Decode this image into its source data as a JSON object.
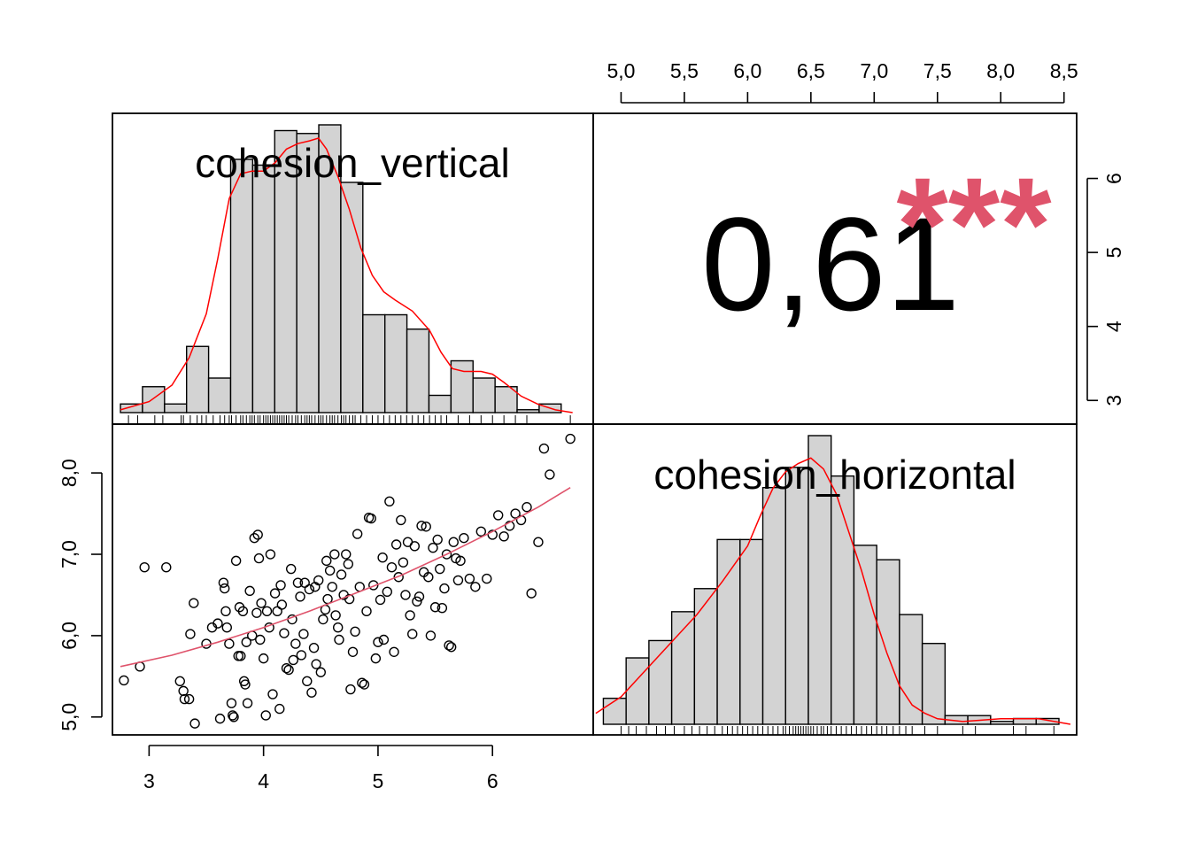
{
  "chart_data": {
    "type": "scatter-matrix",
    "variables": [
      "cohesion_vertical",
      "cohesion_horizontal"
    ],
    "colors": {
      "density": "#ff0000",
      "smooth": "#df536b",
      "stars": "#df536b",
      "bar_fill": "#d3d3d3"
    },
    "x_axis_v": {
      "ticks": [
        3,
        4,
        5,
        6
      ],
      "labels": [
        "3",
        "4",
        "5",
        "6"
      ],
      "range": [
        2.68,
        6.88
      ]
    },
    "y_axis_h": {
      "ticks": [
        5.0,
        6.0,
        7.0,
        8.0
      ],
      "labels": [
        "5,0",
        "6,0",
        "7,0",
        "8,0"
      ],
      "range": [
        4.78,
        8.6
      ]
    },
    "top_axis_h": {
      "ticks": [
        5.0,
        5.5,
        6.0,
        6.5,
        7.0,
        7.5,
        8.0,
        8.5
      ],
      "labels": [
        "5,0",
        "5,5",
        "6,0",
        "6,5",
        "7,0",
        "7,5",
        "8,0",
        "8,5"
      ],
      "range": [
        4.78,
        8.6
      ]
    },
    "right_axis_v": {
      "ticks": [
        3,
        4,
        5,
        6
      ],
      "labels": [
        "3",
        "4",
        "5",
        "6"
      ],
      "range": [
        2.68,
        6.88
      ]
    },
    "correlation": {
      "text": "0,61",
      "stars": "***"
    },
    "hist_vertical": {
      "start": 2.75,
      "width": 0.1925,
      "rel_heights": [
        0.03,
        0.09,
        0.03,
        0.23,
        0.12,
        0.88,
        0.86,
        0.98,
        0.97,
        1.0,
        0.8,
        0.34,
        0.34,
        0.29,
        0.06,
        0.18,
        0.12,
        0.09,
        0.01,
        0.03
      ],
      "density": [
        [
          2.75,
          0.01
        ],
        [
          3.0,
          0.04
        ],
        [
          3.2,
          0.1
        ],
        [
          3.35,
          0.2
        ],
        [
          3.5,
          0.36
        ],
        [
          3.6,
          0.56
        ],
        [
          3.7,
          0.78
        ],
        [
          3.8,
          0.87
        ],
        [
          3.9,
          0.88
        ],
        [
          4.0,
          0.88
        ],
        [
          4.1,
          0.91
        ],
        [
          4.2,
          0.96
        ],
        [
          4.3,
          0.98
        ],
        [
          4.4,
          0.99
        ],
        [
          4.48,
          1.0
        ],
        [
          4.55,
          0.96
        ],
        [
          4.65,
          0.86
        ],
        [
          4.75,
          0.74
        ],
        [
          4.85,
          0.6
        ],
        [
          4.95,
          0.5
        ],
        [
          5.05,
          0.44
        ],
        [
          5.15,
          0.41
        ],
        [
          5.3,
          0.37
        ],
        [
          5.45,
          0.3
        ],
        [
          5.55,
          0.22
        ],
        [
          5.65,
          0.16
        ],
        [
          5.75,
          0.15
        ],
        [
          5.9,
          0.15
        ],
        [
          6.0,
          0.14
        ],
        [
          6.1,
          0.11
        ],
        [
          6.25,
          0.06
        ],
        [
          6.4,
          0.03
        ],
        [
          6.55,
          0.01
        ],
        [
          6.7,
          0.0
        ]
      ]
    },
    "hist_horizontal": {
      "start": 4.86,
      "width": 0.18,
      "rel_heights": [
        0.09,
        0.23,
        0.29,
        0.39,
        0.47,
        0.64,
        0.64,
        0.82,
        0.89,
        1.0,
        0.86,
        0.62,
        0.57,
        0.38,
        0.28,
        0.03,
        0.03,
        0.01,
        0.02,
        0.02
      ],
      "density": [
        [
          4.8,
          0.04
        ],
        [
          5.0,
          0.1
        ],
        [
          5.2,
          0.2
        ],
        [
          5.4,
          0.3
        ],
        [
          5.6,
          0.4
        ],
        [
          5.8,
          0.52
        ],
        [
          6.0,
          0.65
        ],
        [
          6.1,
          0.76
        ],
        [
          6.2,
          0.86
        ],
        [
          6.3,
          0.92
        ],
        [
          6.4,
          0.95
        ],
        [
          6.5,
          0.97
        ],
        [
          6.6,
          0.93
        ],
        [
          6.7,
          0.84
        ],
        [
          6.8,
          0.7
        ],
        [
          6.9,
          0.56
        ],
        [
          7.0,
          0.4
        ],
        [
          7.1,
          0.26
        ],
        [
          7.2,
          0.14
        ],
        [
          7.3,
          0.07
        ],
        [
          7.4,
          0.04
        ],
        [
          7.5,
          0.02
        ],
        [
          7.7,
          0.01
        ],
        [
          8.0,
          0.02
        ],
        [
          8.3,
          0.02
        ],
        [
          8.55,
          0.0
        ]
      ]
    },
    "smooth_line": [
      [
        2.75,
        5.62
      ],
      [
        3.2,
        5.76
      ],
      [
        3.6,
        5.92
      ],
      [
        4.0,
        6.1
      ],
      [
        4.4,
        6.3
      ],
      [
        4.8,
        6.52
      ],
      [
        5.2,
        6.74
      ],
      [
        5.6,
        7.0
      ],
      [
        6.0,
        7.28
      ],
      [
        6.4,
        7.58
      ],
      [
        6.68,
        7.82
      ]
    ],
    "points": [
      [
        2.78,
        5.45
      ],
      [
        2.92,
        5.62
      ],
      [
        2.96,
        6.84
      ],
      [
        3.15,
        6.84
      ],
      [
        3.27,
        5.44
      ],
      [
        3.3,
        5.32
      ],
      [
        3.31,
        5.22
      ],
      [
        3.35,
        5.22
      ],
      [
        3.36,
        6.02
      ],
      [
        3.39,
        6.4
      ],
      [
        3.4,
        4.92
      ],
      [
        3.5,
        5.9
      ],
      [
        3.55,
        6.1
      ],
      [
        3.6,
        6.15
      ],
      [
        3.62,
        4.98
      ],
      [
        3.65,
        6.65
      ],
      [
        3.66,
        6.58
      ],
      [
        3.67,
        6.3
      ],
      [
        3.68,
        6.1
      ],
      [
        3.7,
        5.9
      ],
      [
        3.72,
        5.17
      ],
      [
        3.73,
        5.02
      ],
      [
        3.74,
        5.0
      ],
      [
        3.76,
        6.92
      ],
      [
        3.78,
        5.75
      ],
      [
        3.79,
        6.35
      ],
      [
        3.8,
        5.75
      ],
      [
        3.82,
        6.3
      ],
      [
        3.83,
        5.44
      ],
      [
        3.84,
        5.4
      ],
      [
        3.85,
        5.92
      ],
      [
        3.86,
        5.17
      ],
      [
        3.88,
        6.55
      ],
      [
        3.9,
        6.0
      ],
      [
        3.92,
        7.2
      ],
      [
        3.94,
        6.28
      ],
      [
        3.95,
        7.24
      ],
      [
        3.96,
        6.95
      ],
      [
        3.97,
        5.95
      ],
      [
        3.98,
        6.4
      ],
      [
        4.0,
        5.72
      ],
      [
        4.02,
        5.02
      ],
      [
        4.03,
        6.3
      ],
      [
        4.05,
        6.1
      ],
      [
        4.06,
        7.0
      ],
      [
        4.08,
        5.28
      ],
      [
        4.1,
        6.52
      ],
      [
        4.12,
        6.3
      ],
      [
        4.14,
        5.1
      ],
      [
        4.15,
        6.62
      ],
      [
        4.16,
        6.38
      ],
      [
        4.18,
        6.03
      ],
      [
        4.2,
        5.6
      ],
      [
        4.22,
        5.58
      ],
      [
        4.24,
        6.82
      ],
      [
        4.25,
        6.2
      ],
      [
        4.26,
        5.7
      ],
      [
        4.28,
        5.9
      ],
      [
        4.3,
        6.65
      ],
      [
        4.32,
        6.48
      ],
      [
        4.33,
        5.76
      ],
      [
        4.35,
        6.02
      ],
      [
        4.36,
        6.65
      ],
      [
        4.38,
        5.44
      ],
      [
        4.4,
        6.57
      ],
      [
        4.42,
        5.3
      ],
      [
        4.44,
        5.85
      ],
      [
        4.45,
        6.6
      ],
      [
        4.46,
        5.65
      ],
      [
        4.48,
        6.68
      ],
      [
        4.5,
        5.55
      ],
      [
        4.52,
        6.2
      ],
      [
        4.54,
        6.32
      ],
      [
        4.55,
        6.92
      ],
      [
        4.56,
        6.45
      ],
      [
        4.58,
        6.8
      ],
      [
        4.6,
        6.6
      ],
      [
        4.62,
        7.0
      ],
      [
        4.63,
        6.25
      ],
      [
        4.65,
        6.1
      ],
      [
        4.66,
        5.95
      ],
      [
        4.68,
        6.75
      ],
      [
        4.7,
        6.5
      ],
      [
        4.72,
        7.0
      ],
      [
        4.74,
        6.88
      ],
      [
        4.75,
        6.45
      ],
      [
        4.76,
        5.34
      ],
      [
        4.78,
        5.8
      ],
      [
        4.8,
        6.05
      ],
      [
        4.82,
        7.25
      ],
      [
        4.84,
        6.6
      ],
      [
        4.86,
        5.42
      ],
      [
        4.88,
        5.4
      ],
      [
        4.9,
        6.3
      ],
      [
        4.92,
        7.45
      ],
      [
        4.94,
        7.44
      ],
      [
        4.96,
        6.62
      ],
      [
        4.98,
        5.72
      ],
      [
        5.0,
        5.92
      ],
      [
        5.02,
        6.44
      ],
      [
        5.04,
        6.96
      ],
      [
        5.05,
        5.95
      ],
      [
        5.08,
        6.54
      ],
      [
        5.1,
        7.65
      ],
      [
        5.12,
        6.84
      ],
      [
        5.14,
        5.8
      ],
      [
        5.16,
        7.12
      ],
      [
        5.18,
        6.72
      ],
      [
        5.2,
        7.42
      ],
      [
        5.22,
        6.9
      ],
      [
        5.24,
        6.5
      ],
      [
        5.26,
        7.15
      ],
      [
        5.28,
        6.25
      ],
      [
        5.3,
        6.02
      ],
      [
        5.32,
        7.1
      ],
      [
        5.34,
        6.42
      ],
      [
        5.36,
        6.48
      ],
      [
        5.38,
        7.35
      ],
      [
        5.4,
        6.78
      ],
      [
        5.42,
        7.34
      ],
      [
        5.44,
        6.72
      ],
      [
        5.46,
        6.0
      ],
      [
        5.48,
        7.08
      ],
      [
        5.5,
        6.35
      ],
      [
        5.52,
        7.18
      ],
      [
        5.54,
        6.82
      ],
      [
        5.56,
        6.34
      ],
      [
        5.58,
        6.58
      ],
      [
        5.6,
        7.0
      ],
      [
        5.62,
        5.88
      ],
      [
        5.64,
        5.86
      ],
      [
        5.66,
        7.15
      ],
      [
        5.68,
        6.95
      ],
      [
        5.7,
        6.68
      ],
      [
        5.72,
        6.92
      ],
      [
        5.75,
        7.2
      ],
      [
        5.8,
        6.7
      ],
      [
        5.85,
        6.6
      ],
      [
        5.9,
        7.28
      ],
      [
        5.95,
        6.7
      ],
      [
        6.0,
        7.24
      ],
      [
        6.05,
        7.48
      ],
      [
        6.1,
        7.22
      ],
      [
        6.15,
        7.35
      ],
      [
        6.2,
        7.5
      ],
      [
        6.25,
        7.42
      ],
      [
        6.3,
        7.58
      ],
      [
        6.34,
        6.52
      ],
      [
        6.4,
        7.15
      ],
      [
        6.45,
        8.3
      ],
      [
        6.5,
        7.98
      ],
      [
        6.68,
        8.42
      ]
    ],
    "rug_vertical": [
      2.82,
      2.9,
      3.05,
      3.12,
      3.28,
      3.3,
      3.36,
      3.42,
      3.46,
      3.5,
      3.56,
      3.62,
      3.66,
      3.7,
      3.72,
      3.76,
      3.8,
      3.82,
      3.85,
      3.88,
      3.9,
      3.92,
      3.95,
      3.97,
      4.0,
      4.02,
      4.04,
      4.06,
      4.08,
      4.1,
      4.12,
      4.14,
      4.16,
      4.18,
      4.2,
      4.22,
      4.25,
      4.28,
      4.3,
      4.33,
      4.36,
      4.38,
      4.4,
      4.42,
      4.45,
      4.48,
      4.5,
      4.52,
      4.55,
      4.58,
      4.6,
      4.62,
      4.65,
      4.68,
      4.7,
      4.72,
      4.75,
      4.78,
      4.8,
      4.85,
      4.9,
      4.95,
      5.0,
      5.05,
      5.1,
      5.15,
      5.2,
      5.25,
      5.3,
      5.35,
      5.4,
      5.45,
      5.5,
      5.55,
      5.6,
      5.7,
      5.8,
      5.9,
      6.0,
      6.1,
      6.2,
      6.3,
      6.68
    ],
    "rug_horizontal": [
      5.0,
      5.06,
      5.12,
      5.2,
      5.28,
      5.35,
      5.42,
      5.5,
      5.56,
      5.62,
      5.68,
      5.74,
      5.8,
      5.84,
      5.88,
      5.92,
      5.96,
      6.0,
      6.04,
      6.08,
      6.12,
      6.16,
      6.2,
      6.24,
      6.28,
      6.3,
      6.33,
      6.36,
      6.38,
      6.4,
      6.42,
      6.44,
      6.46,
      6.48,
      6.5,
      6.52,
      6.55,
      6.58,
      6.6,
      6.63,
      6.66,
      6.7,
      6.74,
      6.78,
      6.82,
      6.86,
      6.9,
      6.94,
      6.98,
      7.02,
      7.06,
      7.1,
      7.15,
      7.2,
      7.25,
      7.3,
      7.4,
      7.5,
      7.7,
      7.8,
      8.1,
      8.2,
      8.42
    ]
  }
}
